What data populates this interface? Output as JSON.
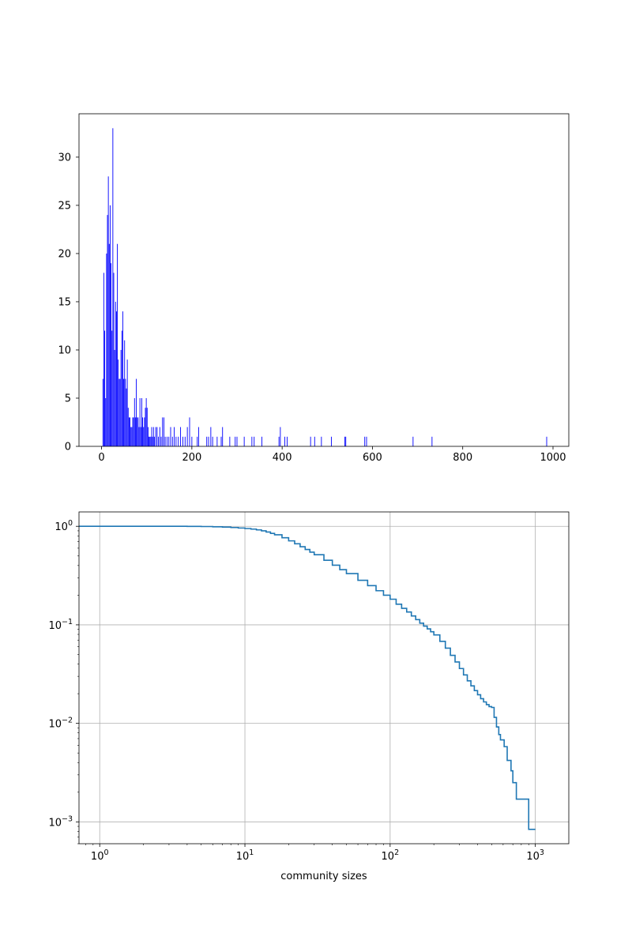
{
  "chart_data": [
    {
      "type": "bar",
      "title": "",
      "xlabel": "",
      "ylabel": "",
      "xlim": [
        -50,
        1035
      ],
      "ylim": [
        0,
        34.5
      ],
      "xticks": [
        0,
        200,
        400,
        600,
        800,
        1000
      ],
      "xtick_labels": [
        "0",
        "200",
        "400",
        "600",
        "800",
        "1000"
      ],
      "yticks": [
        0,
        5,
        10,
        15,
        20,
        25,
        30
      ],
      "ytick_labels": [
        "0",
        "5",
        "10",
        "15",
        "20",
        "25",
        "30"
      ],
      "grid": false,
      "color": "#0000ff",
      "bars": {
        "x": [
          3,
          5,
          7,
          9,
          11,
          13,
          15,
          17,
          19,
          21,
          23,
          25,
          27,
          29,
          31,
          33,
          35,
          37,
          39,
          41,
          43,
          45,
          47,
          49,
          51,
          53,
          55,
          57,
          59,
          61,
          63,
          65,
          67,
          69,
          71,
          73,
          75,
          77,
          79,
          81,
          83,
          85,
          87,
          89,
          91,
          93,
          95,
          97,
          99,
          101,
          103,
          105,
          107,
          109,
          111,
          113,
          115,
          117,
          120,
          123,
          126,
          129,
          132,
          135,
          138,
          141,
          145,
          149,
          153,
          157,
          161,
          165,
          170,
          175,
          180,
          185,
          190,
          195,
          200,
          212,
          215,
          233,
          237,
          242,
          246,
          256,
          265,
          268,
          284,
          296,
          300,
          316,
          333,
          338,
          355,
          393,
          396,
          406,
          411,
          463,
          472,
          487,
          509,
          539,
          541,
          583,
          587,
          690,
          732,
          986
        ],
        "values": [
          7,
          18,
          12,
          5,
          20,
          24,
          28,
          21,
          25,
          19,
          12,
          33,
          18,
          10,
          15,
          14,
          21,
          9,
          7,
          7,
          10,
          12,
          14,
          7,
          11,
          7,
          6,
          9,
          4,
          3,
          3,
          2,
          2,
          3,
          3,
          5,
          3,
          7,
          3,
          3,
          2,
          5,
          2,
          5,
          3,
          2,
          3,
          4,
          5,
          4,
          2,
          1,
          1,
          1,
          2,
          1,
          2,
          1,
          2,
          2,
          1,
          2,
          1,
          3,
          3,
          1,
          1,
          1,
          2,
          1,
          2,
          1,
          1,
          2,
          1,
          1,
          2,
          3,
          1,
          1,
          2,
          1,
          1,
          2,
          1,
          1,
          1,
          2,
          1,
          1,
          1,
          1,
          1,
          1,
          1,
          1,
          2,
          1,
          1,
          1,
          1,
          1,
          1,
          1,
          1,
          1,
          1,
          1,
          1,
          1
        ]
      }
    },
    {
      "type": "line",
      "title": "",
      "xlabel": "community sizes",
      "ylabel": "",
      "xscale": "log",
      "yscale": "log",
      "xlim": [
        0.72,
        1700
      ],
      "ylim": [
        0.0006,
        1.4
      ],
      "xticks": [
        1,
        10,
        100,
        1000
      ],
      "xtick_labels": [
        "10^0",
        "10^1",
        "10^2",
        "10^3"
      ],
      "yticks": [
        0.001,
        0.01,
        0.1,
        1
      ],
      "ytick_labels": [
        "10^-3",
        "10^-2",
        "10^-1",
        "10^0"
      ],
      "grid": true,
      "color": "#1f77b4",
      "drawstyle": "steps-post",
      "series": [
        {
          "x": [
            0.7,
            1,
            2,
            3,
            4,
            5,
            6,
            7,
            8,
            9,
            10,
            11,
            12,
            13,
            14,
            15,
            16,
            18,
            20,
            22,
            24,
            26,
            28,
            30,
            35,
            40,
            45,
            50,
            60,
            70,
            80,
            90,
            100,
            110,
            120,
            130,
            140,
            150,
            160,
            170,
            180,
            190,
            200,
            220,
            240,
            260,
            280,
            300,
            320,
            340,
            360,
            380,
            400,
            420,
            440,
            460,
            480,
            500,
            520,
            540,
            560,
            575,
            590,
            610,
            640,
            680,
            700,
            740,
            770,
            800,
            900,
            1000
          ],
          "y": [
            1.0,
            1.0,
            1.0,
            1.0,
            0.999,
            0.995,
            0.99,
            0.982,
            0.972,
            0.961,
            0.95,
            0.937,
            0.92,
            0.9,
            0.875,
            0.848,
            0.82,
            0.765,
            0.712,
            0.665,
            0.621,
            0.582,
            0.547,
            0.515,
            0.452,
            0.403,
            0.363,
            0.331,
            0.283,
            0.25,
            0.222,
            0.2,
            0.182,
            0.162,
            0.147,
            0.135,
            0.123,
            0.113,
            0.104,
            0.097,
            0.091,
            0.085,
            0.079,
            0.068,
            0.058,
            0.049,
            0.042,
            0.036,
            0.031,
            0.027,
            0.024,
            0.0215,
            0.0195,
            0.0178,
            0.0165,
            0.0155,
            0.0148,
            0.0145,
            0.0115,
            0.0092,
            0.0077,
            0.0068,
            0.0068,
            0.0058,
            0.0042,
            0.0033,
            0.0025,
            0.0017,
            0.0017,
            0.0017,
            0.00084,
            0.00084
          ]
        }
      ]
    }
  ]
}
